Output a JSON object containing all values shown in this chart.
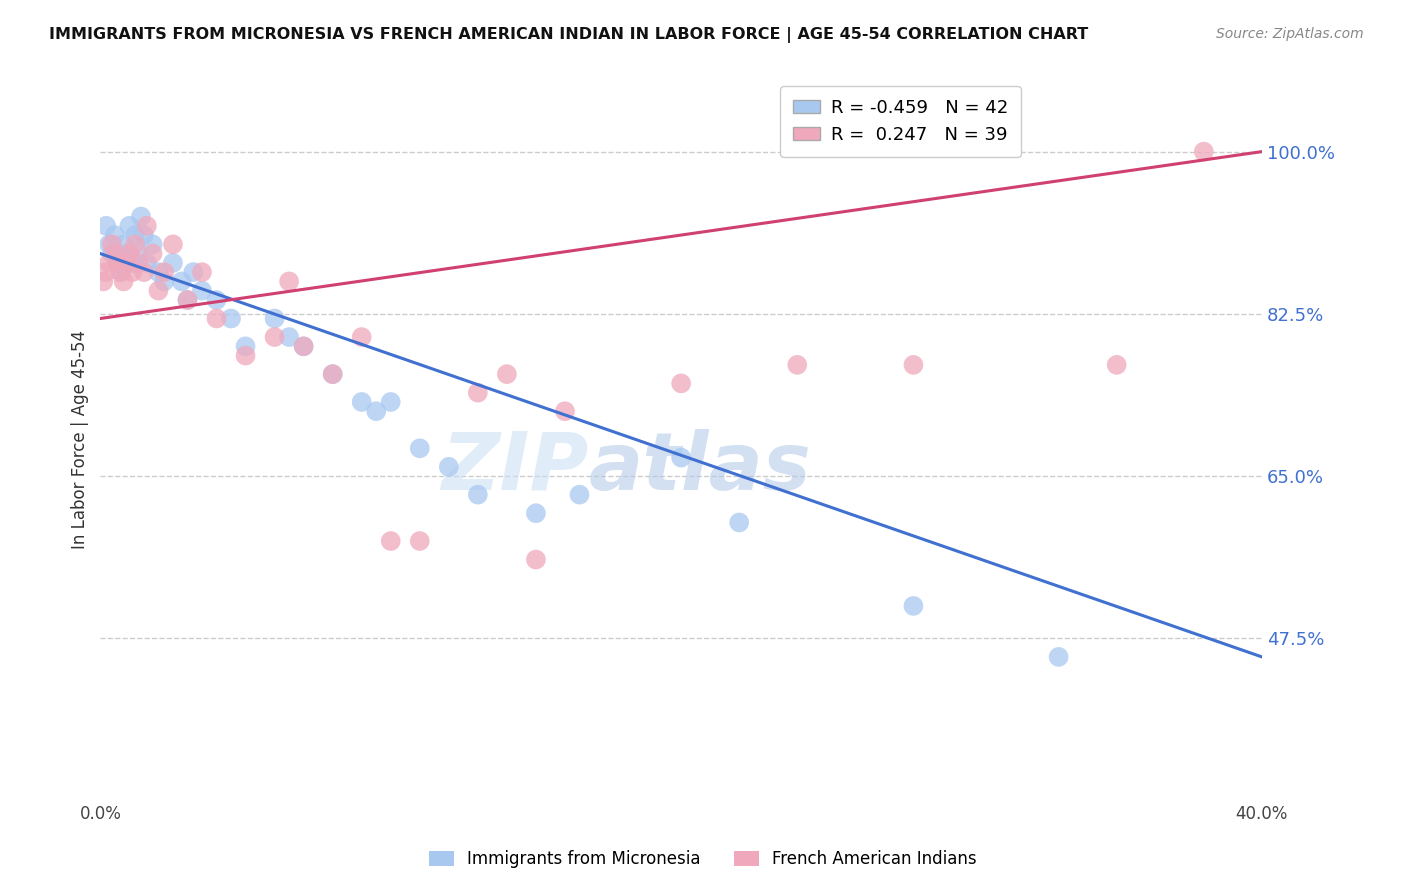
{
  "title": "IMMIGRANTS FROM MICRONESIA VS FRENCH AMERICAN INDIAN IN LABOR FORCE | AGE 45-54 CORRELATION CHART",
  "source": "Source: ZipAtlas.com",
  "ylabel": "In Labor Force | Age 45-54",
  "xlim": [
    0.0,
    0.4
  ],
  "ylim": [
    0.3,
    1.08
  ],
  "xticks": [
    0.0,
    0.1,
    0.2,
    0.3,
    0.4
  ],
  "xticklabels": [
    "0.0%",
    "",
    "",
    "",
    "40.0%"
  ],
  "yticks": [
    0.475,
    0.65,
    0.825,
    1.0
  ],
  "yticklabels": [
    "47.5%",
    "65.0%",
    "82.5%",
    "100.0%"
  ],
  "blue_R": -0.459,
  "blue_N": 42,
  "pink_R": 0.247,
  "pink_N": 39,
  "blue_label": "Immigrants from Micronesia",
  "pink_label": "French American Indians",
  "blue_color": "#a8c8f0",
  "pink_color": "#f0a8bc",
  "blue_line_color": "#4070d0",
  "pink_line_color": "#d04070",
  "blue_scatter_x": [
    0.002,
    0.003,
    0.004,
    0.005,
    0.006,
    0.007,
    0.008,
    0.009,
    0.01,
    0.011,
    0.012,
    0.013,
    0.014,
    0.015,
    0.016,
    0.018,
    0.02,
    0.022,
    0.025,
    0.028,
    0.03,
    0.032,
    0.035,
    0.04,
    0.045,
    0.05,
    0.06,
    0.065,
    0.07,
    0.08,
    0.09,
    0.095,
    0.1,
    0.11,
    0.12,
    0.13,
    0.15,
    0.165,
    0.2,
    0.22,
    0.28,
    0.33
  ],
  "blue_scatter_y": [
    0.92,
    0.9,
    0.89,
    0.91,
    0.88,
    0.87,
    0.9,
    0.89,
    0.92,
    0.88,
    0.91,
    0.89,
    0.93,
    0.91,
    0.88,
    0.9,
    0.87,
    0.86,
    0.88,
    0.86,
    0.84,
    0.87,
    0.85,
    0.84,
    0.82,
    0.79,
    0.82,
    0.8,
    0.79,
    0.76,
    0.73,
    0.72,
    0.73,
    0.68,
    0.66,
    0.63,
    0.61,
    0.63,
    0.67,
    0.6,
    0.51,
    0.455
  ],
  "pink_scatter_x": [
    0.001,
    0.002,
    0.003,
    0.004,
    0.005,
    0.006,
    0.007,
    0.008,
    0.009,
    0.01,
    0.011,
    0.012,
    0.013,
    0.015,
    0.016,
    0.018,
    0.02,
    0.022,
    0.025,
    0.03,
    0.035,
    0.04,
    0.05,
    0.06,
    0.065,
    0.07,
    0.08,
    0.09,
    0.1,
    0.11,
    0.13,
    0.14,
    0.15,
    0.16,
    0.2,
    0.24,
    0.28,
    0.35,
    0.38
  ],
  "pink_scatter_y": [
    0.86,
    0.87,
    0.88,
    0.9,
    0.89,
    0.88,
    0.87,
    0.86,
    0.88,
    0.89,
    0.87,
    0.9,
    0.88,
    0.87,
    0.92,
    0.89,
    0.85,
    0.87,
    0.9,
    0.84,
    0.87,
    0.82,
    0.78,
    0.8,
    0.86,
    0.79,
    0.76,
    0.8,
    0.58,
    0.58,
    0.74,
    0.76,
    0.56,
    0.72,
    0.75,
    0.77,
    0.77,
    0.77,
    1.0
  ],
  "blue_line_x0": 0.0,
  "blue_line_y0": 0.89,
  "blue_line_x1": 0.4,
  "blue_line_y1": 0.455,
  "pink_line_x0": 0.0,
  "pink_line_y0": 0.82,
  "pink_line_x1": 0.4,
  "pink_line_y1": 1.0,
  "watermark_top": "ZIP",
  "watermark_bottom": "atlas",
  "grid_color": "#cccccc",
  "background_color": "#ffffff"
}
